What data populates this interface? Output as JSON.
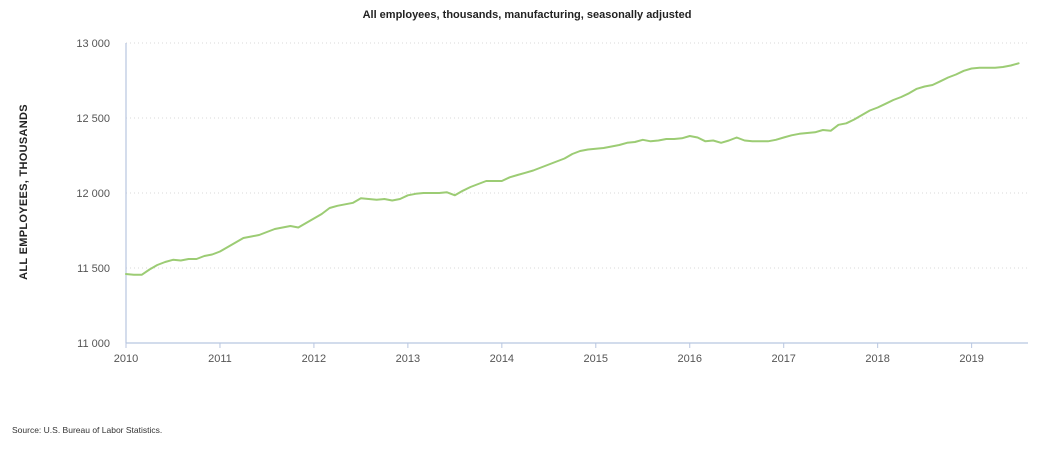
{
  "chart_data": {
    "type": "line",
    "title": "All employees, thousands, manufacturing, seasonally adjusted",
    "ylabel": "ALL EMPLOYEES, THOUSANDS",
    "xlabel": "",
    "source": "Source: U.S. Bureau of Labor Statistics.",
    "x_ticks": [
      "2010",
      "2011",
      "2012",
      "2013",
      "2014",
      "2015",
      "2016",
      "2017",
      "2018",
      "2019"
    ],
    "y_ticks": [
      "11 000",
      "11 500",
      "12 000",
      "12 500",
      "13 000"
    ],
    "ylim": [
      11000,
      13000
    ],
    "xlim": [
      "2010-01",
      "2019-08"
    ],
    "grid": "horizontal dotted",
    "line_color": "#9ccc74",
    "series": [
      {
        "x": [
          "2010-01",
          "2010-02",
          "2010-03",
          "2010-04",
          "2010-05",
          "2010-06",
          "2010-07",
          "2010-08",
          "2010-09",
          "2010-10",
          "2010-11",
          "2010-12",
          "2011-01",
          "2011-02",
          "2011-03",
          "2011-04",
          "2011-05",
          "2011-06",
          "2011-07",
          "2011-08",
          "2011-09",
          "2011-10",
          "2011-11",
          "2011-12",
          "2012-01",
          "2012-02",
          "2012-03",
          "2012-04",
          "2012-05",
          "2012-06",
          "2012-07",
          "2012-08",
          "2012-09",
          "2012-10",
          "2012-11",
          "2012-12",
          "2013-01",
          "2013-02",
          "2013-03",
          "2013-04",
          "2013-05",
          "2013-06",
          "2013-07",
          "2013-08",
          "2013-09",
          "2013-10",
          "2013-11",
          "2013-12",
          "2014-01",
          "2014-02",
          "2014-03",
          "2014-04",
          "2014-05",
          "2014-06",
          "2014-07",
          "2014-08",
          "2014-09",
          "2014-10",
          "2014-11",
          "2014-12",
          "2015-01",
          "2015-02",
          "2015-03",
          "2015-04",
          "2015-05",
          "2015-06",
          "2015-07",
          "2015-08",
          "2015-09",
          "2015-10",
          "2015-11",
          "2015-12",
          "2016-01",
          "2016-02",
          "2016-03",
          "2016-04",
          "2016-05",
          "2016-06",
          "2016-07",
          "2016-08",
          "2016-09",
          "2016-10",
          "2016-11",
          "2016-12",
          "2017-01",
          "2017-02",
          "2017-03",
          "2017-04",
          "2017-05",
          "2017-06",
          "2017-07",
          "2017-08",
          "2017-09",
          "2017-10",
          "2017-11",
          "2017-12",
          "2018-01",
          "2018-02",
          "2018-03",
          "2018-04",
          "2018-05",
          "2018-06",
          "2018-07",
          "2018-08",
          "2018-09",
          "2018-10",
          "2018-11",
          "2018-12",
          "2019-01",
          "2019-02",
          "2019-03",
          "2019-04",
          "2019-05",
          "2019-06",
          "2019-07"
        ],
        "values": [
          11460,
          11455,
          11455,
          11490,
          11520,
          11540,
          11555,
          11550,
          11560,
          11560,
          11580,
          11590,
          11610,
          11640,
          11670,
          11700,
          11710,
          11720,
          11740,
          11760,
          11770,
          11780,
          11770,
          11800,
          11830,
          11860,
          11900,
          11915,
          11925,
          11935,
          11965,
          11960,
          11955,
          11960,
          11950,
          11960,
          11985,
          11995,
          12000,
          12000,
          12000,
          12005,
          11985,
          12015,
          12040,
          12060,
          12080,
          12080,
          12080,
          12105,
          12120,
          12135,
          12150,
          12170,
          12190,
          12210,
          12230,
          12260,
          12280,
          12290,
          12295,
          12300,
          12310,
          12320,
          12335,
          12340,
          12355,
          12345,
          12350,
          12360,
          12360,
          12365,
          12380,
          12370,
          12345,
          12350,
          12335,
          12350,
          12370,
          12350,
          12345,
          12345,
          12345,
          12355,
          12370,
          12385,
          12395,
          12400,
          12405,
          12420,
          12415,
          12455,
          12465,
          12490,
          12520,
          12550,
          12570,
          12595,
          12620,
          12640,
          12665,
          12695,
          12710,
          12720,
          12745,
          12770,
          12790,
          12815,
          12830,
          12835,
          12835,
          12835,
          12840,
          12850,
          12865
        ]
      }
    ]
  }
}
